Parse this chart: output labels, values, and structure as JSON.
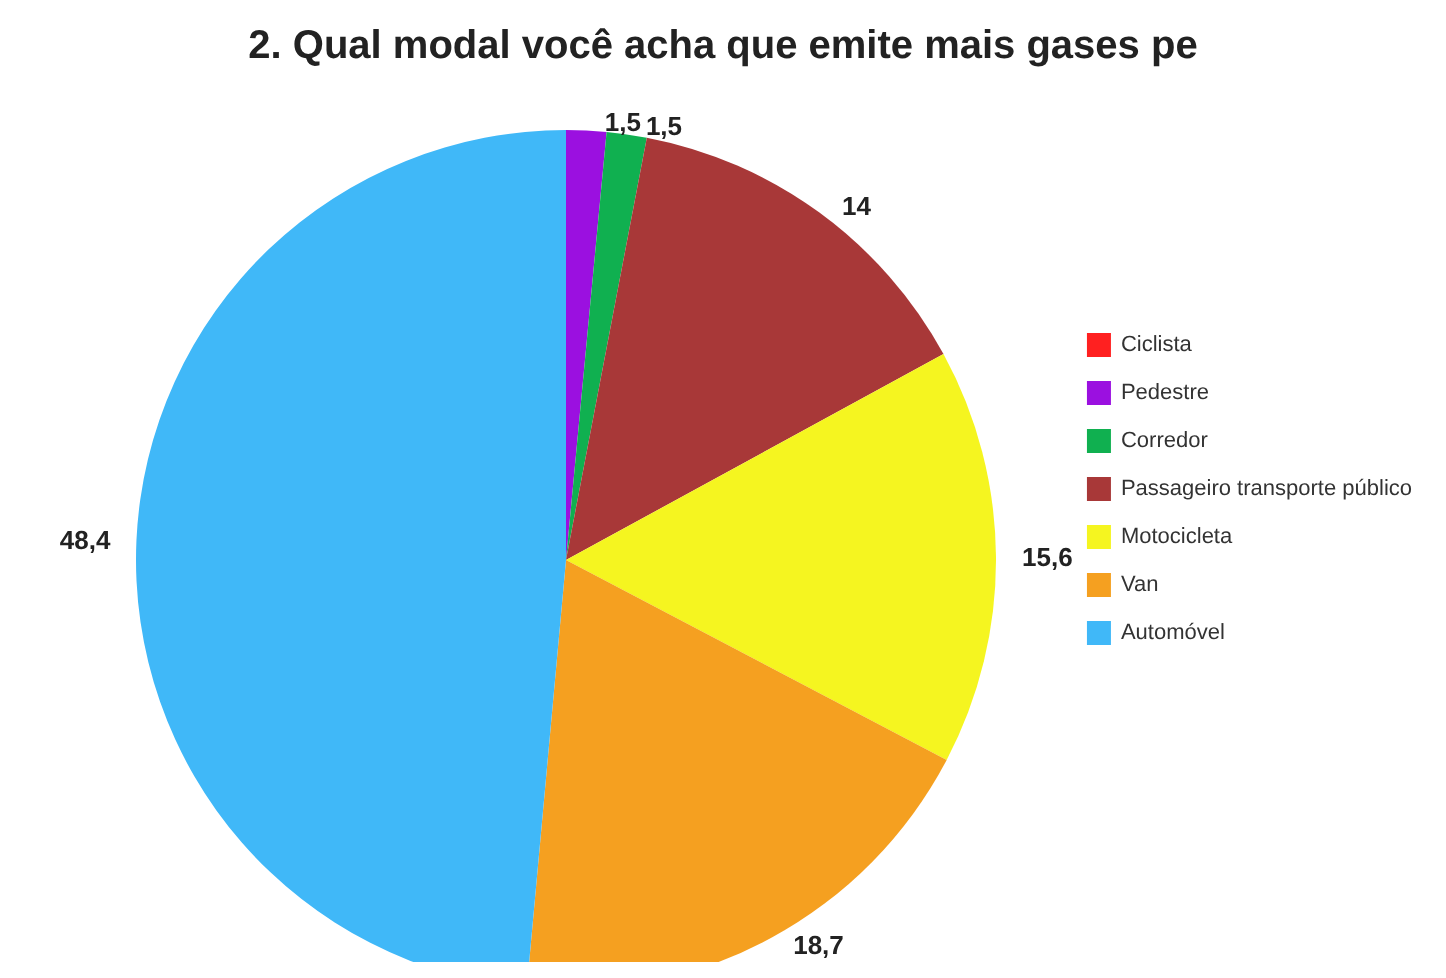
{
  "chart_data": {
    "type": "pie",
    "title": "2. Qual modal você acha que emite mais gases pe",
    "categories": [
      "Ciclista",
      "Pedestre",
      "Corredor",
      "Passageiro transporte público",
      "Motocicleta",
      "Van",
      "Automóvel"
    ],
    "values": [
      0,
      1.5,
      1.5,
      14,
      15.6,
      18.7,
      48.4
    ],
    "value_labels": [
      null,
      "1,5",
      "1,5",
      "14",
      "15,6",
      "18,7",
      "48,4"
    ],
    "colors": [
      "#ff2020",
      "#9b10e0",
      "#10b050",
      "#a83838",
      "#f5f520",
      "#f5a020",
      "#40b8f8"
    ],
    "legend": "right"
  }
}
